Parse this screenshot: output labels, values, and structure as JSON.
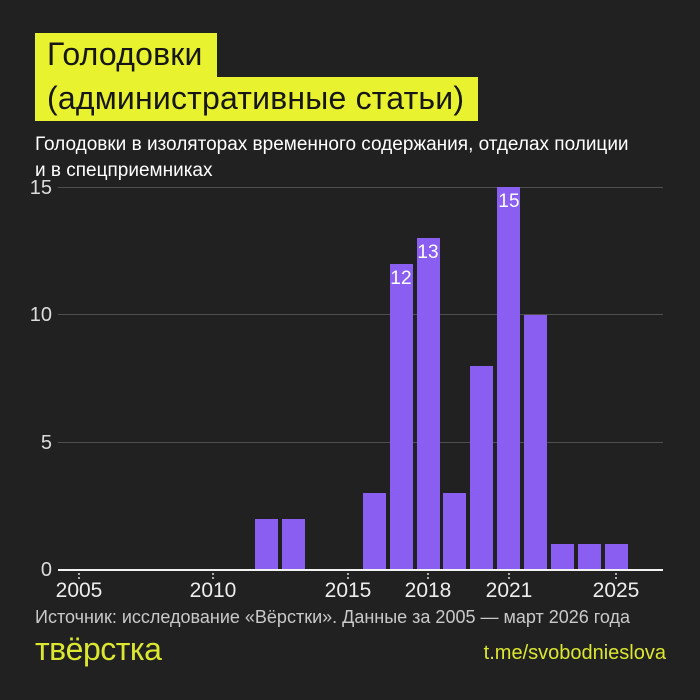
{
  "header": {
    "title_lines": [
      "Голодовки",
      "(административные статьи)"
    ],
    "subtitle_lines": [
      "Голодовки в изоляторах временного содержания, отделах полиции",
      "и в спецприемниках"
    ]
  },
  "chart_data": {
    "type": "bar",
    "title": "Голодовки (административные статьи)",
    "subtitle": "Голодовки в изоляторах временного содержания, отделах полиции и в спецприемниках",
    "categories": [
      "2005",
      "2006",
      "2007",
      "2008",
      "2009",
      "2010",
      "2011",
      "2012",
      "2013",
      "2014",
      "2015",
      "2016",
      "2017",
      "2018",
      "2019",
      "2020",
      "2021",
      "2022",
      "2023",
      "2024",
      "2025"
    ],
    "values": [
      0,
      0,
      0,
      0,
      0,
      0,
      0,
      2,
      2,
      0,
      0,
      3,
      12,
      13,
      3,
      8,
      15,
      10,
      1,
      1,
      1
    ],
    "value_labels": [
      {
        "year": "2017",
        "text": "12"
      },
      {
        "year": "2018",
        "text": "13"
      },
      {
        "year": "2021",
        "text": "15"
      }
    ],
    "x_ticks": [
      "2005",
      "2010",
      "2015",
      "2018",
      "2021",
      "2025"
    ],
    "y_ticks": [
      0,
      5,
      10,
      15
    ],
    "ylim": [
      0,
      15
    ],
    "xlabel": "",
    "ylabel": "",
    "grid": true,
    "legend": false,
    "bar_color": "#8b5ef2",
    "background_color": "#212121",
    "gridline_color": "#4f4f4f",
    "axis_color": "#f2f2f2",
    "highlight_color": "#e9f22e"
  },
  "footer": {
    "source": "Источник: исследование «Вёрстки». Данные за 2005 — март 2026 года",
    "logo": "твёрстка",
    "link": "t.me/svobodnieslova"
  }
}
